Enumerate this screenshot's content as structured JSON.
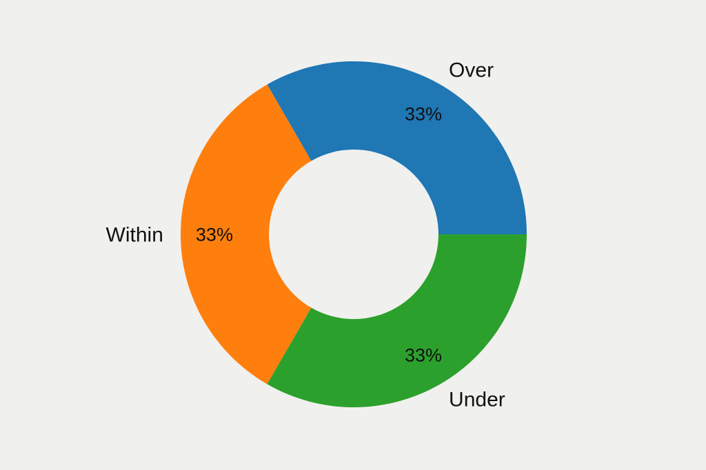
{
  "chart_data": {
    "type": "pie",
    "subtype": "donut",
    "title": "",
    "categories": [
      "Over",
      "Within",
      "Under"
    ],
    "values": [
      33.33,
      33.33,
      33.33
    ],
    "pct_labels": [
      "33%",
      "33%",
      "33%"
    ],
    "colors": [
      "#1f77b4",
      "#ff7f0e",
      "#2ca02c"
    ],
    "start_angle_deg": 0,
    "direction": "counterclockwise",
    "donut_hole_ratio": 0.49,
    "pct_label_distance": 0.805,
    "category_label_distance": 1.1,
    "legend": "none",
    "grid": "off",
    "background_color": "#f0f0ee",
    "text_color": "#111111"
  }
}
